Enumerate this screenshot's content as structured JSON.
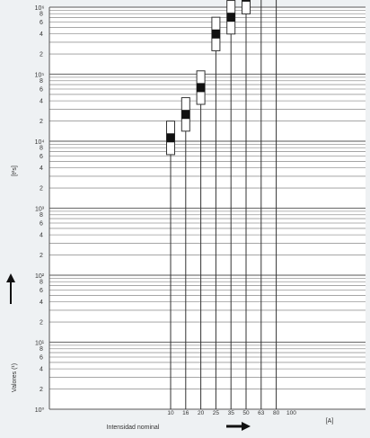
{
  "chart_data": {
    "type": "scatter",
    "title": "",
    "xlabel": "Intensidad nominal",
    "xunit": "[A]",
    "ylabel": "Valores (¹)",
    "yunit": "[t²s]",
    "yscale": "log",
    "y_decades": [
      {
        "exp": 0,
        "label": "10⁰"
      },
      {
        "exp": 1,
        "label": "10¹"
      },
      {
        "exp": 2,
        "label": "10²"
      },
      {
        "exp": 3,
        "label": "10³"
      },
      {
        "exp": 4,
        "label": "10⁴"
      },
      {
        "exp": 5,
        "label": "10⁵"
      },
      {
        "exp": 6,
        "label": "10⁶"
      }
    ],
    "y_minor_labels": [
      "2",
      "4",
      "6",
      "8"
    ],
    "categories": [
      "10",
      "16",
      "20",
      "25",
      "35",
      "50",
      "63",
      "80",
      "100"
    ],
    "series": [
      {
        "points": [
          {
            "x": "10",
            "low": 3.8,
            "mid": 4.05,
            "high": 4.3
          },
          {
            "x": "16",
            "low": 4.15,
            "mid": 4.4,
            "high": 4.65
          },
          {
            "x": "20",
            "low": 4.55,
            "mid": 4.8,
            "high": 5.05
          },
          {
            "x": "25",
            "low": 5.35,
            "mid": 5.6,
            "high": 5.85
          },
          {
            "x": "35",
            "low": 5.6,
            "mid": 5.85,
            "high": 6.1
          },
          {
            "x": "50",
            "low": 5.9,
            "mid": 6.15,
            "high": 6.4
          },
          {
            "x": "63",
            "low": 6.25,
            "mid": 6.5,
            "high": 6.75
          },
          {
            "x": "80",
            "low": 6.6,
            "mid": 6.85,
            "high": 7.1
          }
        ]
      }
    ],
    "grid": true
  }
}
